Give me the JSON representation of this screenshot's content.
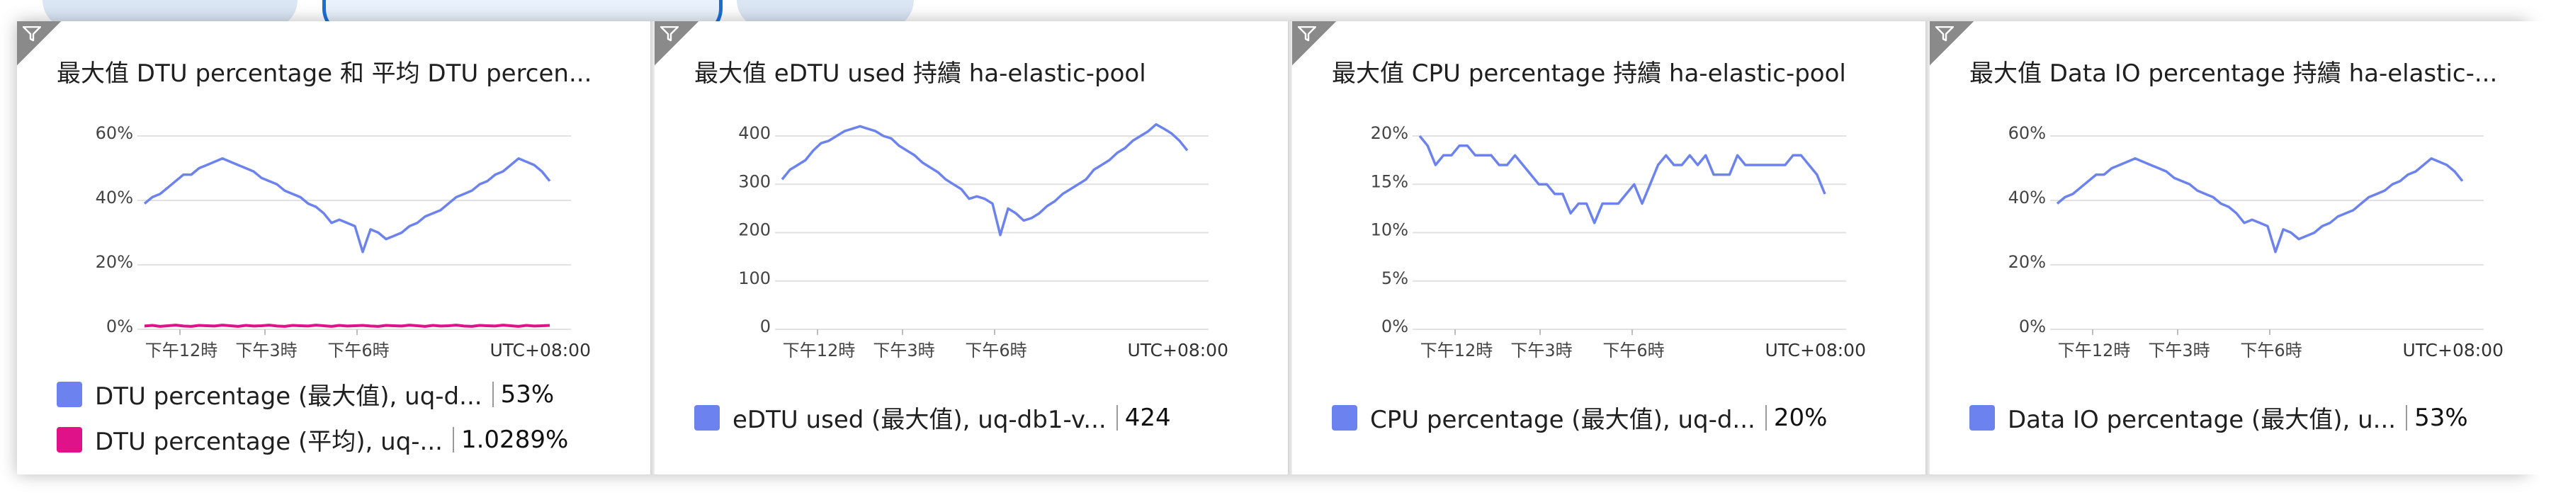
{
  "colors": {
    "series_blue": "#6c83ef",
    "series_pink": "#e0128a",
    "grid": "#e1e1e1",
    "filter_corner": "#8a8a8a"
  },
  "icons": {
    "tile_filter": "filter-icon"
  },
  "tiles": [
    {
      "title": "最大值 DTU percentage 和 平均 DTU percen...",
      "timezone": "UTC+08:00",
      "legend": [
        {
          "label": "DTU percentage (最大值), uq-d...",
          "value": "53%",
          "color": "#6c83ef"
        },
        {
          "label": "DTU percentage (平均), uq-...",
          "value": "1.0289%",
          "color": "#e0128a"
        }
      ]
    },
    {
      "title": "最大值 eDTU used 持續 ha-elastic-pool",
      "timezone": "UTC+08:00",
      "legend": [
        {
          "label": "eDTU used (最大值), uq-db1-v...",
          "value": "424",
          "color": "#6c83ef"
        }
      ]
    },
    {
      "title": "最大值 CPU percentage 持續 ha-elastic-pool",
      "timezone": "UTC+08:00",
      "legend": [
        {
          "label": "CPU percentage (最大值), uq-d...",
          "value": "20%",
          "color": "#6c83ef"
        }
      ]
    },
    {
      "title": "最大值 Data IO percentage 持續 ha-elastic-...",
      "timezone": "UTC+08:00",
      "legend": [
        {
          "label": "Data IO percentage (最大值), u...",
          "value": "53%",
          "color": "#6c83ef"
        }
      ]
    }
  ],
  "chart_data": [
    {
      "type": "line",
      "title": "最大值 DTU percentage 和 平均 DTU percen...",
      "x_ticks": [
        "下午12時",
        "下午3時",
        "下午6時"
      ],
      "y_ticks": [
        "60%",
        "40%",
        "20%",
        "0%"
      ],
      "ylim": [
        0,
        60
      ],
      "series": [
        {
          "name": "DTU percentage (最大值), uq-d...",
          "color": "#6c83ef",
          "values": [
            39,
            41,
            42,
            44,
            46,
            48,
            48,
            50,
            51,
            52,
            53,
            52,
            51,
            50,
            49,
            47,
            46,
            45,
            43,
            42,
            41,
            39,
            38,
            36,
            33,
            34,
            33,
            32,
            24,
            31,
            30,
            28,
            29,
            30,
            32,
            33,
            35,
            36,
            37,
            39,
            41,
            42,
            43,
            45,
            46,
            48,
            49,
            51,
            53,
            52,
            51,
            49,
            46
          ]
        },
        {
          "name": "DTU percentage (平均), uq-...",
          "color": "#e0128a",
          "values": [
            1.0,
            1.2,
            0.9,
            1.1,
            1.3,
            1.0,
            0.9,
            1.2,
            1.1,
            1.0,
            1.3,
            1.1,
            0.9,
            1.2,
            1.0,
            1.1,
            1.3,
            1.0,
            0.9,
            1.2,
            1.1,
            1.0,
            1.3,
            1.1,
            0.9,
            1.2,
            1.0,
            1.1,
            1.2,
            1.0,
            0.9,
            1.2,
            1.1,
            1.0,
            1.3,
            1.1,
            0.9,
            1.2,
            1.0,
            1.1,
            1.3,
            1.0,
            0.9,
            1.2,
            1.1,
            1.0,
            1.3,
            1.1,
            0.9,
            1.2,
            1.0,
            1.1,
            1.2
          ]
        }
      ]
    },
    {
      "type": "line",
      "title": "最大值 eDTU used 持續 ha-elastic-pool",
      "x_ticks": [
        "下午12時",
        "下午3時",
        "下午6時"
      ],
      "y_ticks": [
        "400",
        "300",
        "200",
        "100",
        "0"
      ],
      "ylim": [
        0,
        400
      ],
      "series": [
        {
          "name": "eDTU used (最大值), uq-db1-v...",
          "color": "#6c83ef",
          "values": [
            310,
            330,
            340,
            350,
            370,
            385,
            390,
            400,
            410,
            415,
            420,
            415,
            410,
            400,
            395,
            380,
            370,
            360,
            345,
            335,
            325,
            310,
            300,
            290,
            270,
            275,
            270,
            260,
            195,
            250,
            240,
            225,
            230,
            240,
            255,
            265,
            280,
            290,
            300,
            310,
            330,
            340,
            350,
            365,
            375,
            390,
            400,
            410,
            424,
            415,
            405,
            390,
            370
          ]
        }
      ]
    },
    {
      "type": "line",
      "title": "最大值 CPU percentage 持續 ha-elastic-pool",
      "x_ticks": [
        "下午12時",
        "下午3時",
        "下午6時"
      ],
      "y_ticks": [
        "20%",
        "15%",
        "10%",
        "5%",
        "0%"
      ],
      "ylim": [
        0,
        20
      ],
      "series": [
        {
          "name": "CPU percentage (最大值), uq-d...",
          "color": "#6c83ef",
          "values": [
            20,
            19,
            17,
            18,
            18,
            19,
            19,
            18,
            18,
            18,
            17,
            17,
            18,
            17,
            16,
            15,
            15,
            14,
            14,
            12,
            13,
            13,
            11,
            13,
            13,
            13,
            14,
            15,
            13,
            15,
            17,
            18,
            17,
            17,
            18,
            17,
            18,
            16,
            16,
            16,
            18,
            17,
            17,
            17,
            17,
            17,
            17,
            18,
            18,
            17,
            16,
            14
          ]
        }
      ]
    },
    {
      "type": "line",
      "title": "最大值 Data IO percentage 持續 ha-elastic-...",
      "x_ticks": [
        "下午12時",
        "下午3時",
        "下午6時"
      ],
      "y_ticks": [
        "60%",
        "40%",
        "20%",
        "0%"
      ],
      "ylim": [
        0,
        60
      ],
      "series": [
        {
          "name": "Data IO percentage (最大值), u...",
          "color": "#6c83ef",
          "values": [
            39,
            41,
            42,
            44,
            46,
            48,
            48,
            50,
            51,
            52,
            53,
            52,
            51,
            50,
            49,
            47,
            46,
            45,
            43,
            42,
            41,
            39,
            38,
            36,
            33,
            34,
            33,
            32,
            24,
            31,
            30,
            28,
            29,
            30,
            32,
            33,
            35,
            36,
            37,
            39,
            41,
            42,
            43,
            45,
            46,
            48,
            49,
            51,
            53,
            52,
            51,
            49,
            46
          ]
        }
      ]
    }
  ]
}
